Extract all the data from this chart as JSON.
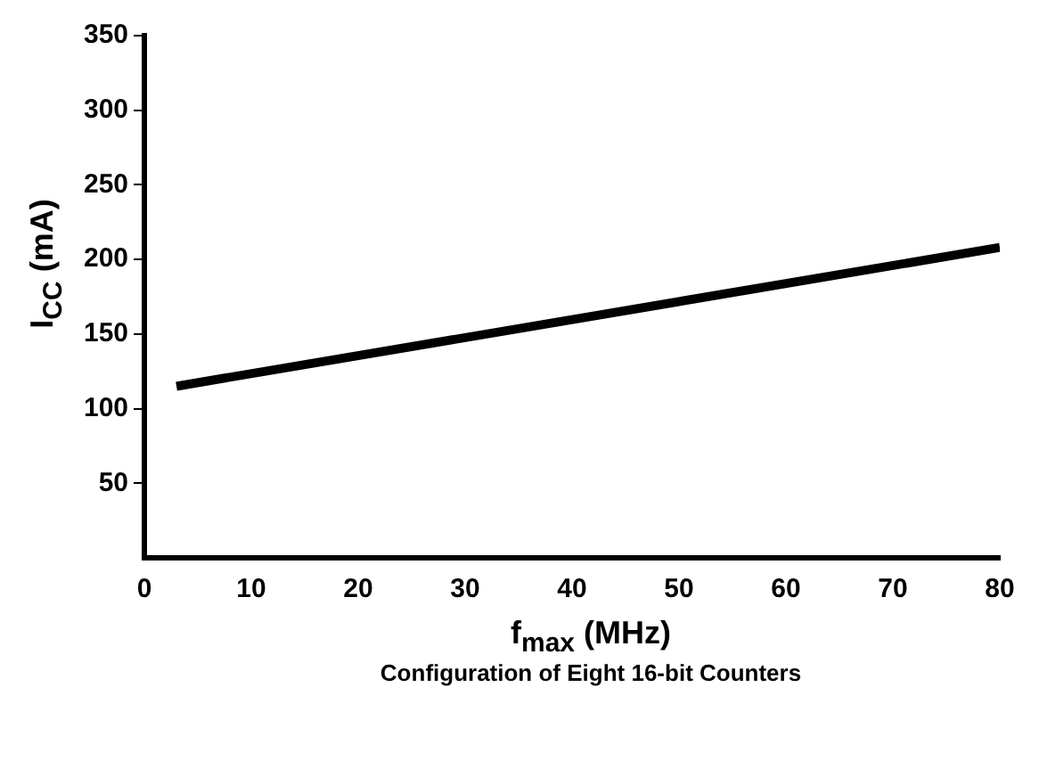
{
  "chart_data": {
    "type": "line",
    "xlabel": "f$_{max}$ (MHz)",
    "ylabel": "I$_{CC}$ (mA)",
    "annotations": [
      "Configuration of Eight 16-bit Counters"
    ],
    "x": [
      3,
      80
    ],
    "series": [
      {
        "color": "#000000",
        "values": [
          115,
          208
        ]
      }
    ],
    "xlim": [
      0,
      80
    ],
    "xticks": [
      0,
      10,
      20,
      30,
      40,
      50,
      60,
      70,
      80
    ],
    "ylim": [
      0,
      350
    ],
    "yticks": [
      50,
      100,
      150,
      200,
      250,
      300,
      350
    ],
    "marker": "none",
    "line_style": "solid"
  }
}
